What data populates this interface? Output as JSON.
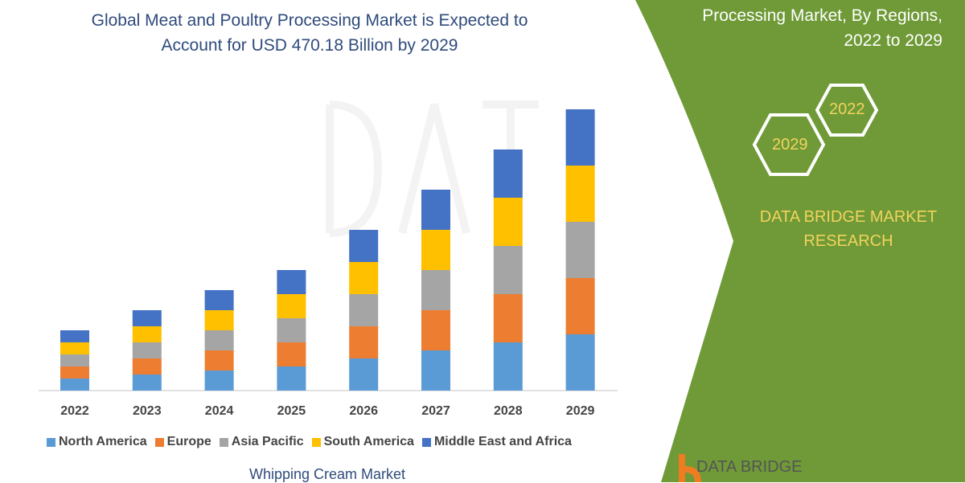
{
  "header": {
    "title_line1": "Global Meat and Poultry Processing Market is Expected to",
    "title_line2": "Account for USD 470.18 Billion by 2029"
  },
  "side_panel": {
    "title_line1": "Processing Market, By Regions,",
    "title_line2": "2022 to 2029",
    "hex_1": "2022",
    "hex_2": "2029",
    "brand_line1": "DATA BRIDGE MARKET",
    "brand_line2": "RESEARCH",
    "panel_color": "#6f9a37",
    "logo_text": "DATA BRIDGE"
  },
  "footer": {
    "subtitle": "Whipping Cream Market"
  },
  "watermark": "DATA BRIDGE MARKET RESEARCH",
  "chart_data": {
    "type": "bar",
    "stacked": true,
    "title": "Global Meat and Poultry Processing Market is Expected to Account for USD 470.18 Billion by 2029",
    "categories": [
      "2022",
      "2023",
      "2024",
      "2025",
      "2026",
      "2027",
      "2028",
      "2029"
    ],
    "series": [
      {
        "name": "North America",
        "color": "#5b9bd5",
        "values": [
          15,
          20,
          25,
          30,
          40,
          50,
          60,
          70
        ]
      },
      {
        "name": "Europe",
        "color": "#ed7d31",
        "values": [
          15,
          20,
          25,
          30,
          40,
          50,
          60,
          70
        ]
      },
      {
        "name": "Asia Pacific",
        "color": "#a5a5a5",
        "values": [
          15,
          20,
          25,
          30,
          40,
          50,
          60,
          70
        ]
      },
      {
        "name": "South America",
        "color": "#ffc000",
        "values": [
          15,
          20,
          25,
          30,
          40,
          50,
          60,
          70
        ]
      },
      {
        "name": "Middle East and Africa",
        "color": "#4472c4",
        "values": [
          15,
          20,
          25,
          30,
          40,
          50,
          60,
          70
        ]
      }
    ],
    "y_axis_shown": false,
    "grid": false,
    "legend_placement": "bottom"
  }
}
